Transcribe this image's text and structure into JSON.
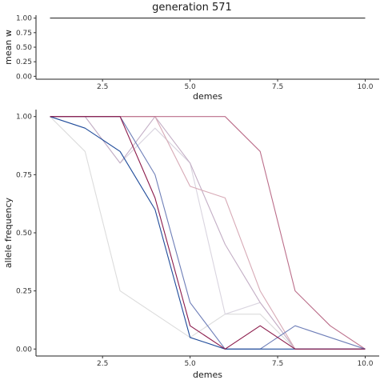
{
  "chart_data": [
    {
      "type": "line",
      "title": "generation 571",
      "xlabel": "demes",
      "ylabel": "mean w",
      "xlim": [
        0.6,
        10.4
      ],
      "ylim": [
        -0.05,
        1.05
      ],
      "xticks": [
        "2.5",
        "5.0",
        "7.5",
        "10.0"
      ],
      "yticks": [
        "0.00",
        "0.25",
        "0.50",
        "0.75",
        "1.00"
      ],
      "grid": false,
      "series": [
        {
          "color": "#333333",
          "x": [
            1,
            2,
            3,
            4,
            5,
            6,
            7,
            8,
            9,
            10
          ],
          "y": [
            1,
            1,
            1,
            1,
            1,
            1,
            1,
            1,
            1,
            1
          ]
        }
      ]
    },
    {
      "type": "line",
      "title": "",
      "xlabel": "demes",
      "ylabel": "allele frequency",
      "xlim": [
        0.6,
        10.4
      ],
      "ylim": [
        -0.03,
        1.03
      ],
      "xticks": [
        "2.5",
        "5.0",
        "7.5",
        "10.0"
      ],
      "yticks": [
        "0.00",
        "0.25",
        "0.50",
        "0.75",
        "1.00"
      ],
      "grid": false,
      "series": [
        {
          "color": "#dcdcdc",
          "x": [
            1,
            2,
            3,
            4,
            5,
            6,
            7,
            8,
            9,
            10
          ],
          "y": [
            1.0,
            0.85,
            0.25,
            0.15,
            0.05,
            0.15,
            0.15,
            0.0,
            0.0,
            0.0
          ]
        },
        {
          "color": "#d9d4df",
          "x": [
            1,
            2,
            3,
            4,
            5,
            6,
            7,
            8,
            9,
            10
          ],
          "y": [
            1.0,
            1.0,
            0.8,
            0.95,
            0.8,
            0.15,
            0.2,
            0.0,
            0.0,
            0.0
          ]
        },
        {
          "color": "#c3aec5",
          "x": [
            1,
            2,
            3,
            4,
            5,
            6,
            7,
            8,
            9,
            10
          ],
          "y": [
            1.0,
            1.0,
            0.8,
            1.0,
            0.8,
            0.45,
            0.2,
            0.0,
            0.0,
            0.0
          ]
        },
        {
          "color": "#d7aab6",
          "x": [
            1,
            2,
            3,
            4,
            5,
            6,
            7,
            8,
            9,
            10
          ],
          "y": [
            1.0,
            1.0,
            1.0,
            1.0,
            0.7,
            0.65,
            0.25,
            0.0,
            0.0,
            0.0
          ]
        },
        {
          "color": "#bb6e8a",
          "x": [
            1,
            2,
            3,
            4,
            5,
            6,
            7,
            8,
            9,
            10
          ],
          "y": [
            1.0,
            1.0,
            1.0,
            1.0,
            1.0,
            1.0,
            0.85,
            0.25,
            0.1,
            0.0
          ]
        },
        {
          "color": "#6f7fb8",
          "x": [
            1,
            2,
            3,
            4,
            5,
            6,
            7,
            8,
            9,
            10
          ],
          "y": [
            1.0,
            1.0,
            1.0,
            0.75,
            0.2,
            0.0,
            0.0,
            0.1,
            0.05,
            0.0
          ]
        },
        {
          "color": "#1f4b9a",
          "x": [
            1,
            2,
            3,
            4,
            5,
            6,
            7,
            8,
            9,
            10
          ],
          "y": [
            1.0,
            0.95,
            0.85,
            0.6,
            0.05,
            0.0,
            0.0,
            0.0,
            0.0,
            0.0
          ]
        },
        {
          "color": "#8b1a4a",
          "x": [
            1,
            2,
            3,
            4,
            5,
            6,
            7,
            8,
            9,
            10
          ],
          "y": [
            1.0,
            1.0,
            1.0,
            0.65,
            0.1,
            0.0,
            0.1,
            0.0,
            0.0,
            0.0
          ]
        }
      ]
    }
  ]
}
